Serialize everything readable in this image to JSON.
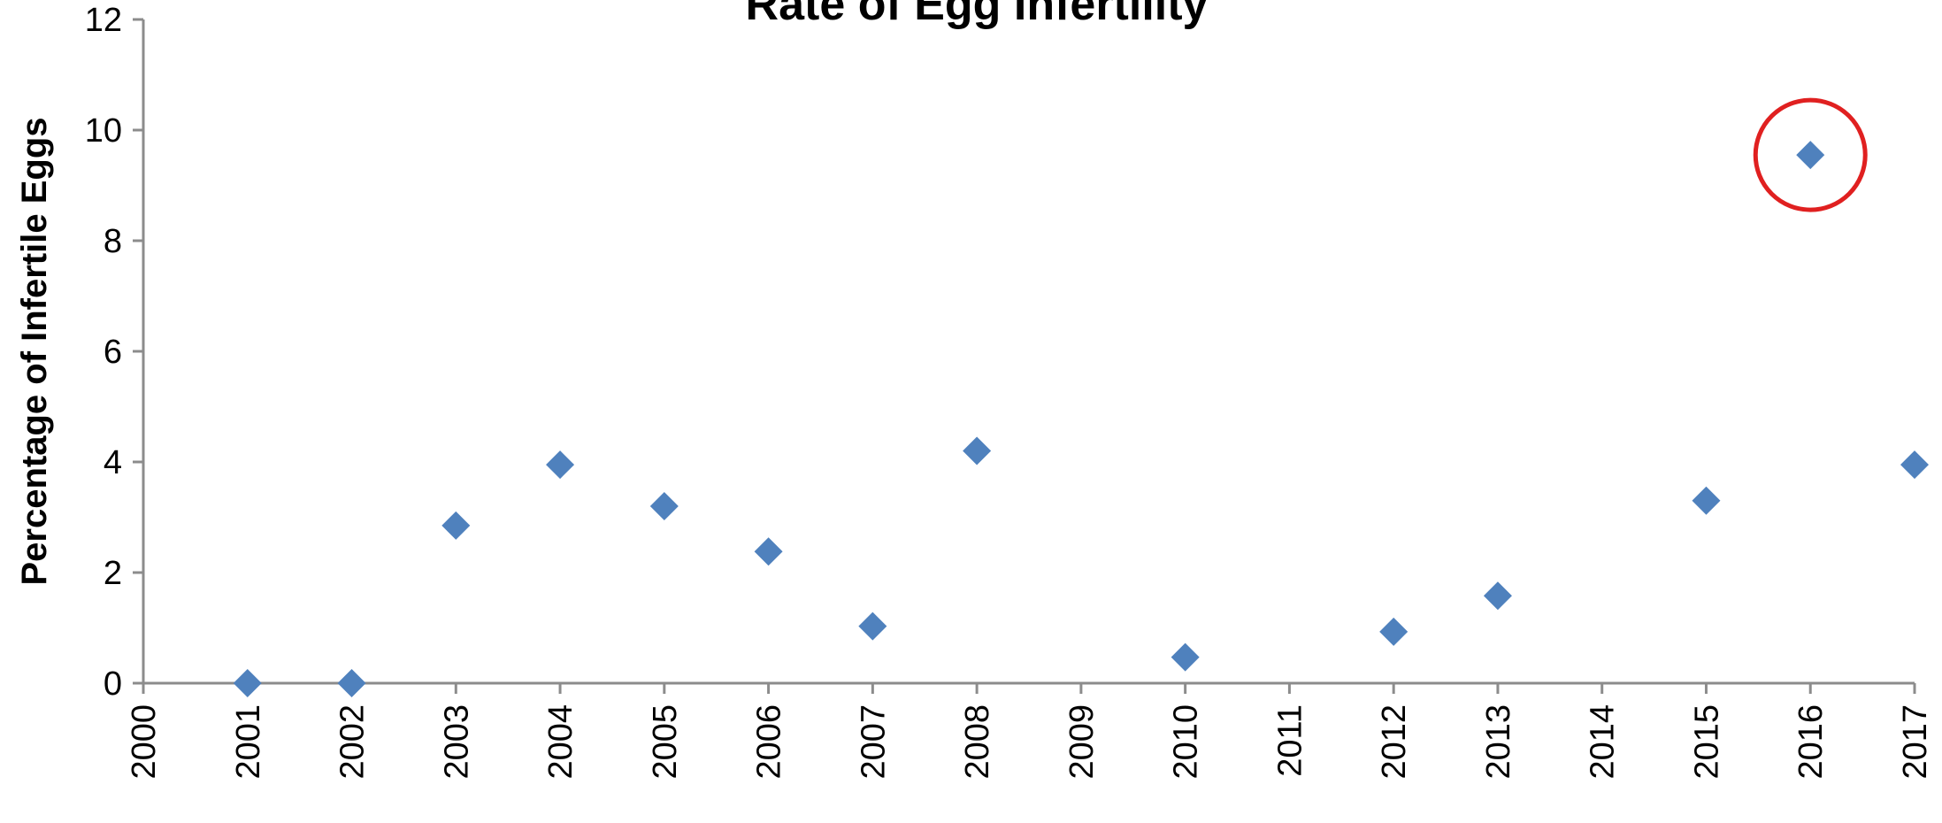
{
  "chart_data": {
    "type": "scatter",
    "title": "Rate of Egg Infertility",
    "xlabel": "",
    "ylabel": "Percentage of Infertile Eggs",
    "xlim": [
      2000,
      2017
    ],
    "ylim": [
      0,
      12
    ],
    "xticks": [
      2000,
      2001,
      2002,
      2003,
      2004,
      2005,
      2006,
      2007,
      2008,
      2009,
      2010,
      2011,
      2012,
      2013,
      2014,
      2015,
      2016,
      2017
    ],
    "yticks": [
      0,
      2,
      4,
      6,
      8,
      10,
      12
    ],
    "grid": false,
    "marker": "diamond",
    "marker_color": "#4f81bd",
    "series": [
      {
        "x": [
          2001,
          2002,
          2003,
          2004,
          2005,
          2006,
          2007,
          2008,
          2010,
          2012,
          2013,
          2015,
          2016,
          2017
        ],
        "y": [
          0,
          0,
          2.85,
          3.95,
          3.2,
          2.38,
          1.03,
          4.2,
          0.47,
          0.93,
          1.58,
          3.3,
          9.55,
          3.95
        ]
      }
    ],
    "annotations": [
      {
        "type": "circle",
        "x": 2016,
        "y": 9.55,
        "color": "#e02020"
      }
    ]
  }
}
